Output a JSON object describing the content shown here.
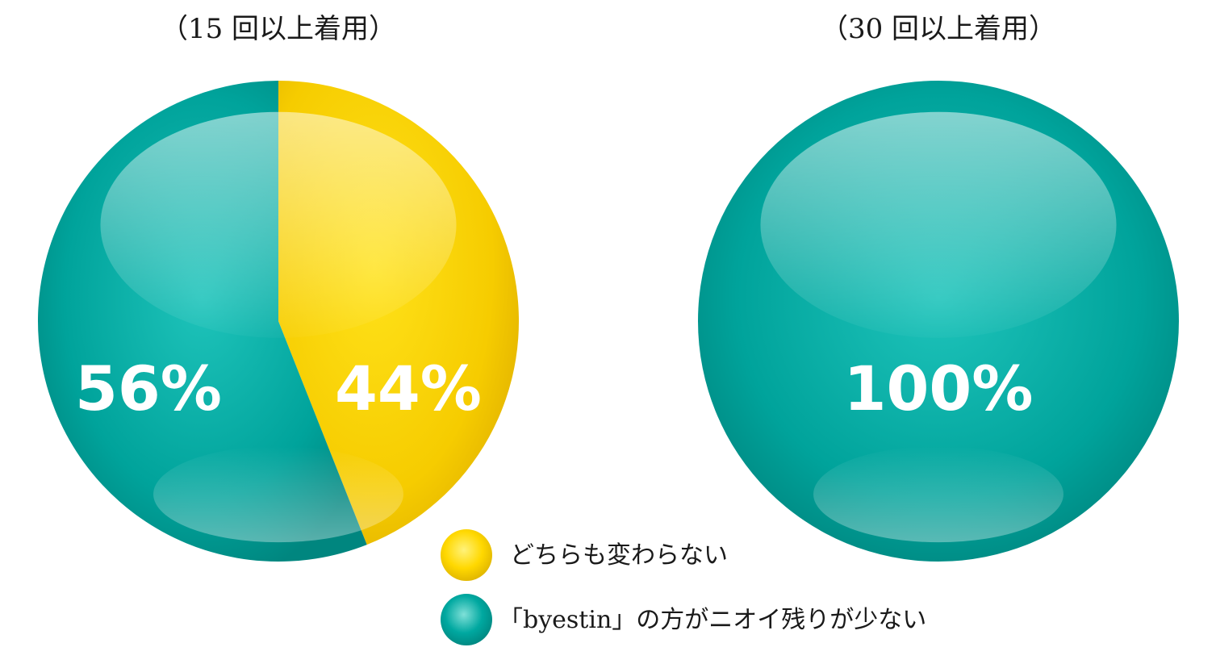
{
  "chart_data": [
    {
      "type": "pie",
      "title": "（15 回以上着用）",
      "categories": [
        "「byestin」の方がニオイ残りが少ない",
        "どちらも変わらない"
      ],
      "values": [
        56,
        44
      ],
      "labels": [
        "56%",
        "44%"
      ],
      "colors": [
        "#00a8a0",
        "#ffd800"
      ]
    },
    {
      "type": "pie",
      "title": "（30 回以上着用）",
      "categories": [
        "「byestin」の方がニオイ残りが少ない"
      ],
      "values": [
        100
      ],
      "labels": [
        "100%"
      ],
      "colors": [
        "#00a8a0"
      ]
    }
  ],
  "legend": {
    "placement": "bottom-center",
    "items": [
      {
        "label": "どちらも変わらない",
        "color": "#ffd800"
      },
      {
        "label": "「byestin」の方がニオイ残りが少ない",
        "color": "#00a8a0"
      }
    ]
  }
}
